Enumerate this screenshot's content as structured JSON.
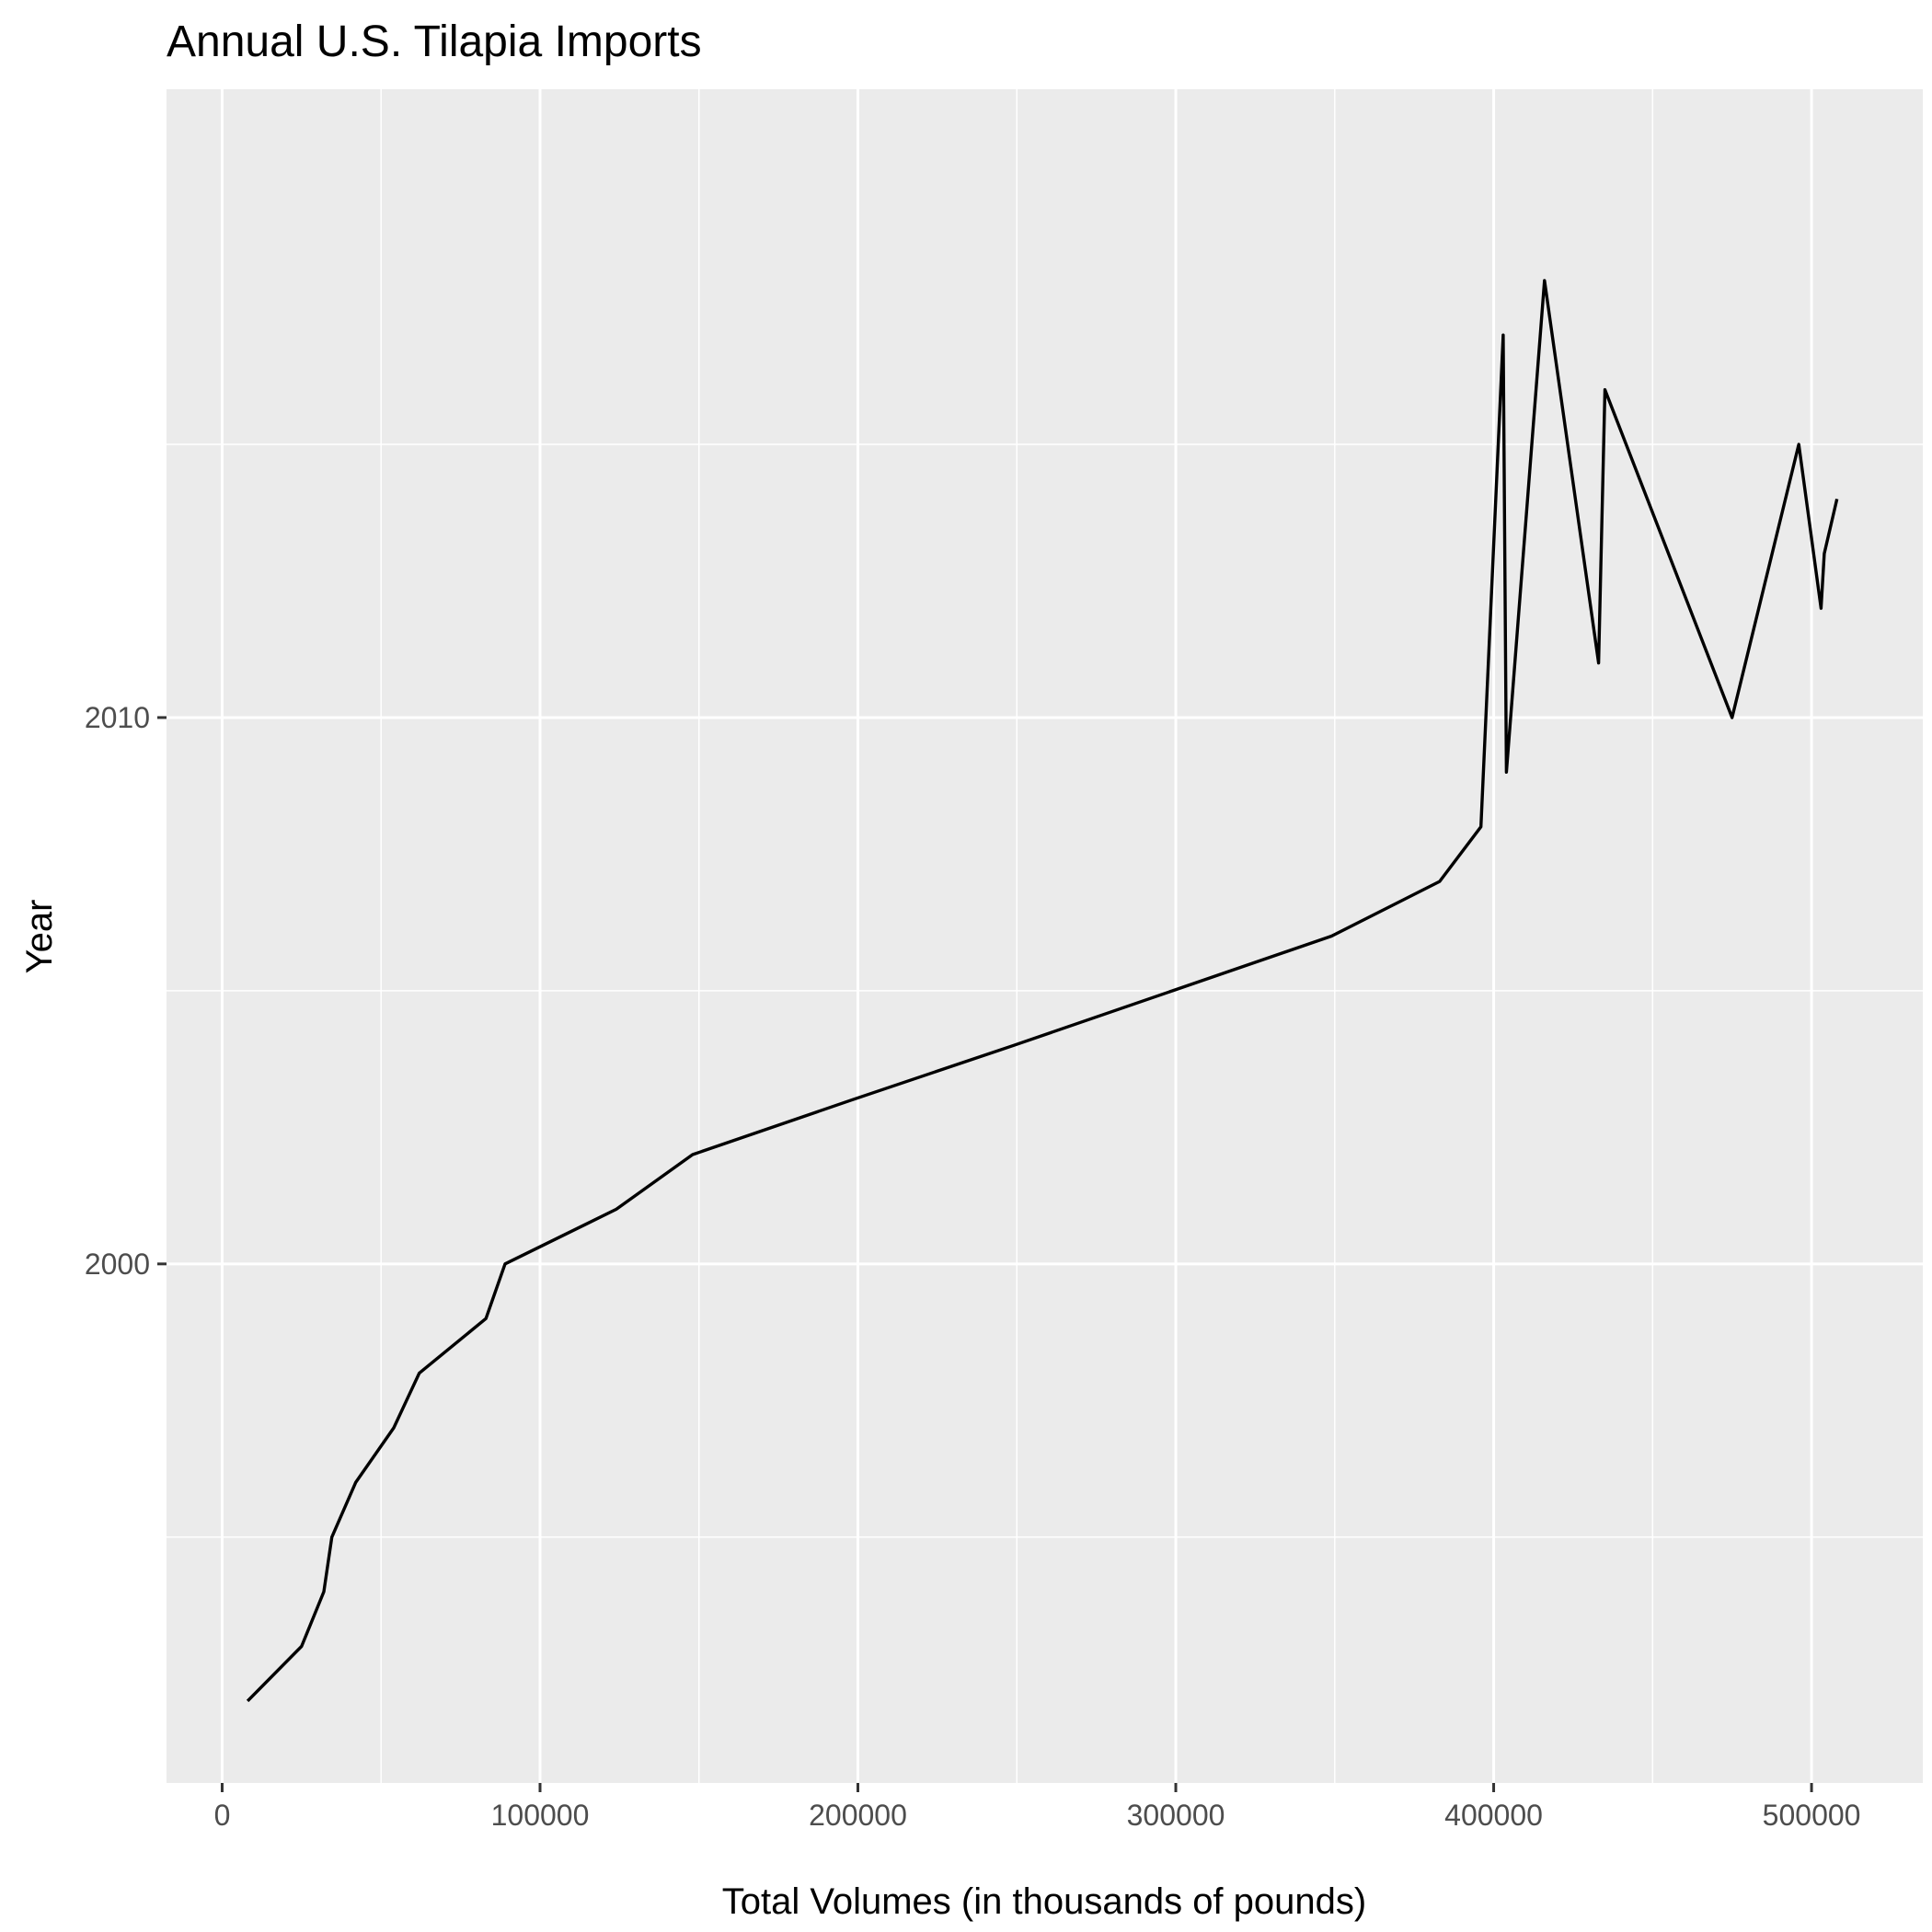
{
  "chart_data": {
    "type": "line",
    "title": "Annual U.S. Tilapia Imports",
    "xlabel": "Total Volumes (in thousands of pounds)",
    "ylabel": "Year",
    "xlim": [
      -17500,
      535000
    ],
    "ylim": [
      1990.5,
      2021.5
    ],
    "x_ticks": [
      0,
      100000,
      200000,
      300000,
      400000,
      500000
    ],
    "x_tick_labels": [
      "0",
      "100000",
      "200000",
      "300000",
      "400000",
      "500000"
    ],
    "y_ticks": [
      2000,
      2010
    ],
    "y_tick_labels": [
      "2000",
      "2010"
    ],
    "grid": true,
    "series": [
      {
        "color": "#000000",
        "x": [
          8000,
          25000,
          32000,
          34500,
          42000,
          54000,
          62000,
          83000,
          89000,
          124000,
          148000,
          198000,
          249000,
          299000,
          349000,
          383000,
          396000,
          403000,
          404000,
          416000,
          433000,
          435000,
          475000,
          496000,
          503000,
          504000,
          508000
        ],
        "y": [
          1992,
          1993,
          1994,
          1995,
          1996,
          1997,
          1998,
          1999,
          2000,
          2001,
          2002,
          2003,
          2004,
          2005,
          2006,
          2007,
          2008,
          2017,
          2009,
          2018,
          2011,
          2016,
          2010,
          2015,
          2012,
          2013,
          2014
        ]
      }
    ]
  }
}
